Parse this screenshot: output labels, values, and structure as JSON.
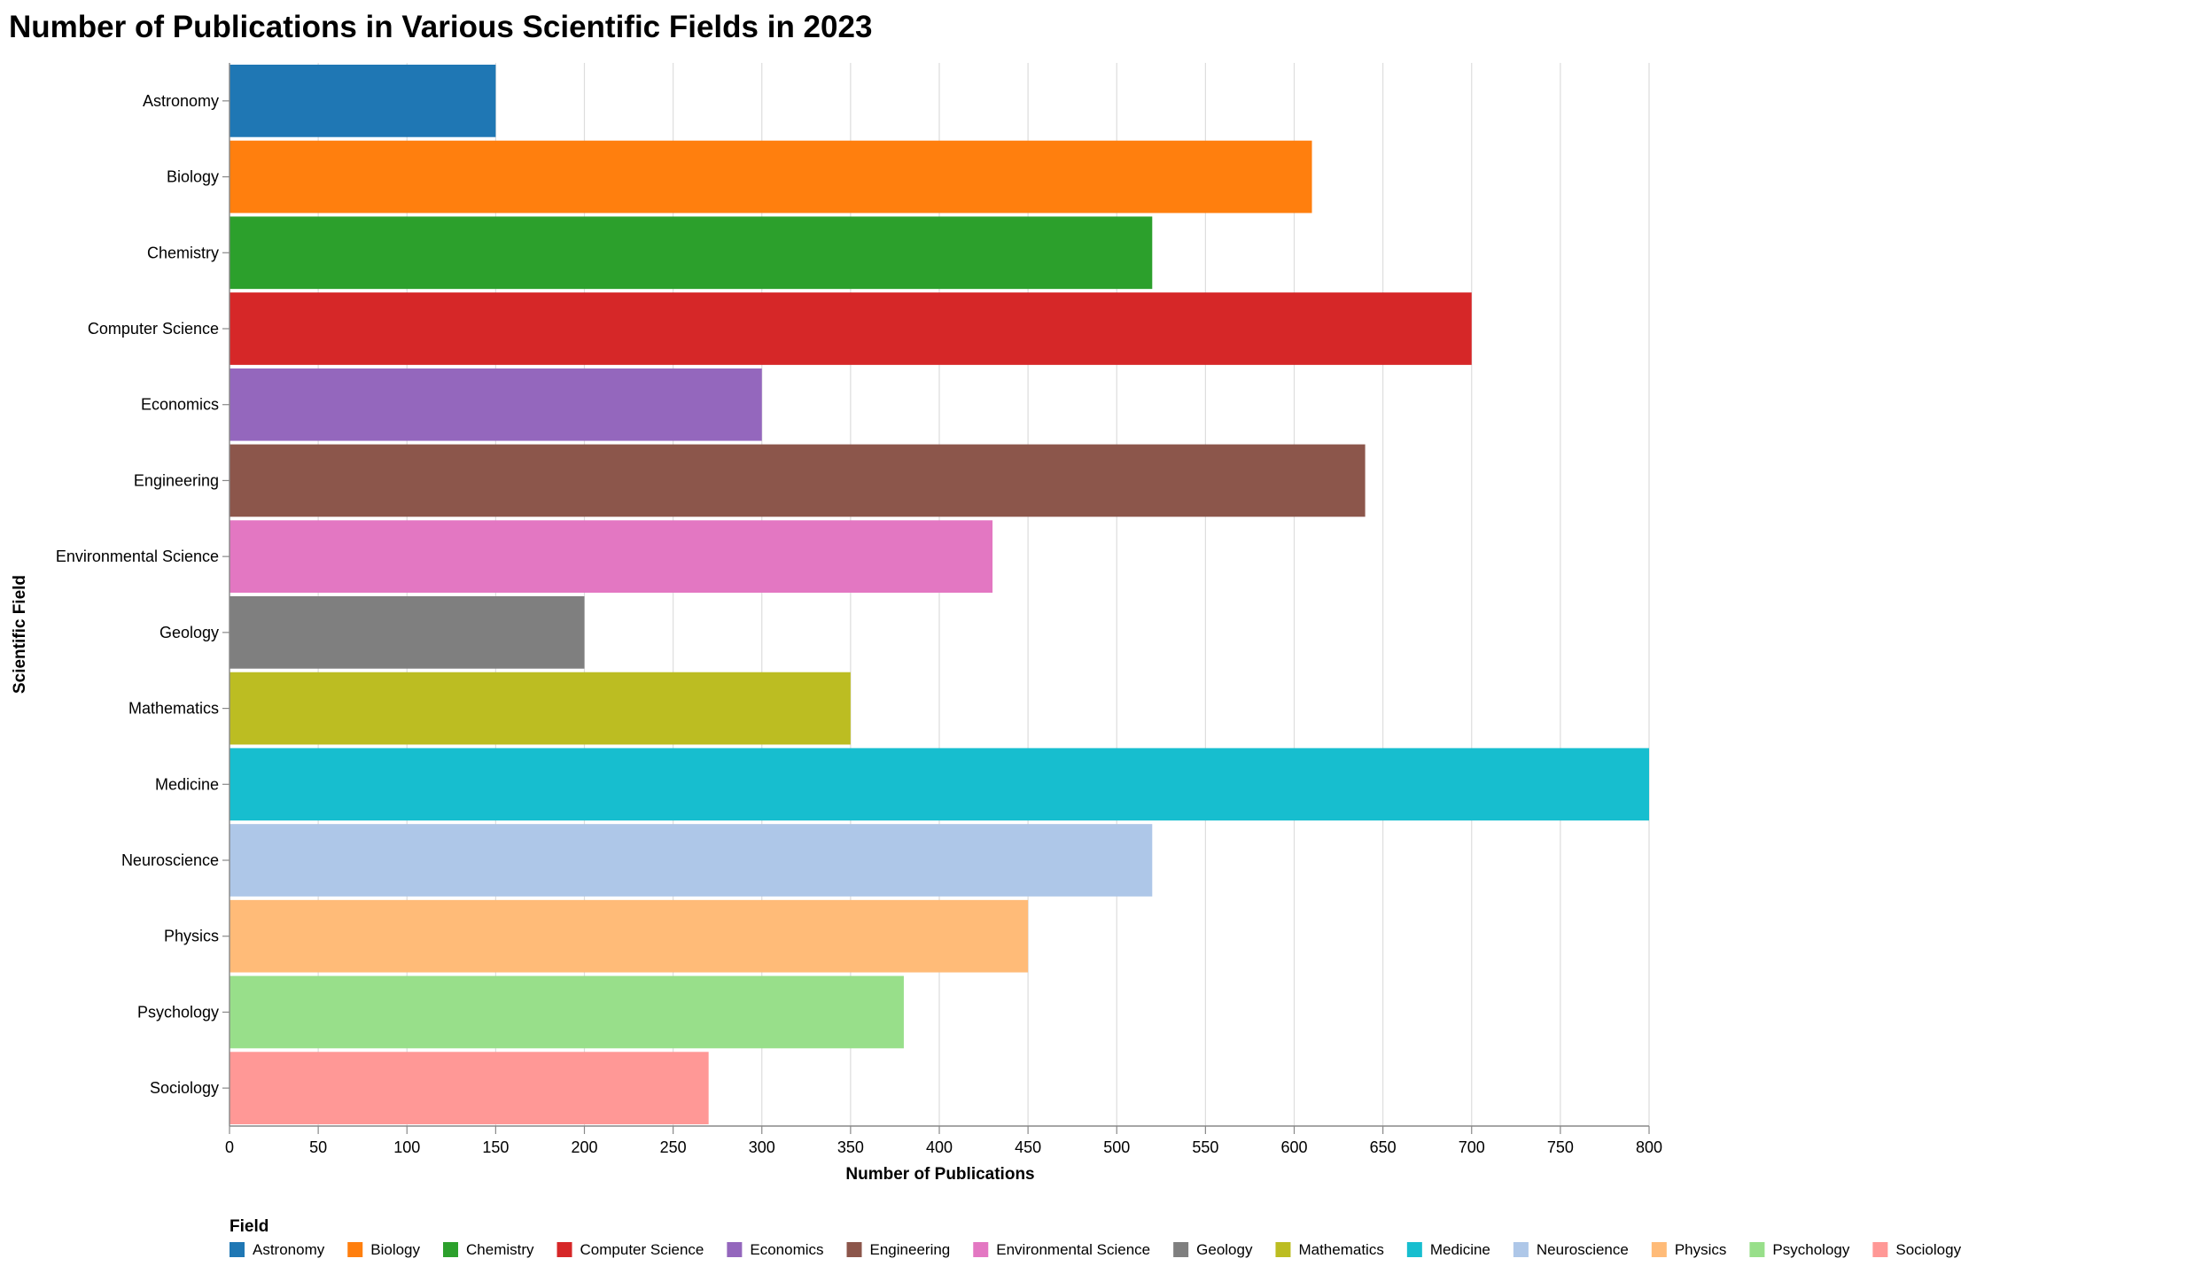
{
  "chart_data": {
    "type": "bar",
    "orientation": "horizontal",
    "title": "Number of Publications in Various Scientific Fields in 2023",
    "xlabel": "Number of Publications",
    "ylabel": "Scientific Field",
    "xlim": [
      0,
      800
    ],
    "x_ticks": [
      "0",
      "50",
      "100",
      "150",
      "200",
      "250",
      "300",
      "350",
      "400",
      "450",
      "500",
      "550",
      "600",
      "650",
      "700",
      "750",
      "800"
    ],
    "grid": true,
    "legend_title": "Field",
    "legend_position": "bottom",
    "categories": [
      "Astronomy",
      "Biology",
      "Chemistry",
      "Computer Science",
      "Economics",
      "Engineering",
      "Environmental Science",
      "Geology",
      "Mathematics",
      "Medicine",
      "Neuroscience",
      "Physics",
      "Psychology",
      "Sociology"
    ],
    "values": [
      150,
      610,
      520,
      700,
      300,
      640,
      430,
      200,
      350,
      800,
      520,
      450,
      380,
      270
    ],
    "colors": [
      "#1f77b4",
      "#ff7f0e",
      "#2ca02c",
      "#d62728",
      "#9467bd",
      "#8c564b",
      "#e377c2",
      "#7f7f7f",
      "#bcbd22",
      "#17becf",
      "#aec7e8",
      "#ffbb78",
      "#98df8a",
      "#ff9896"
    ]
  }
}
